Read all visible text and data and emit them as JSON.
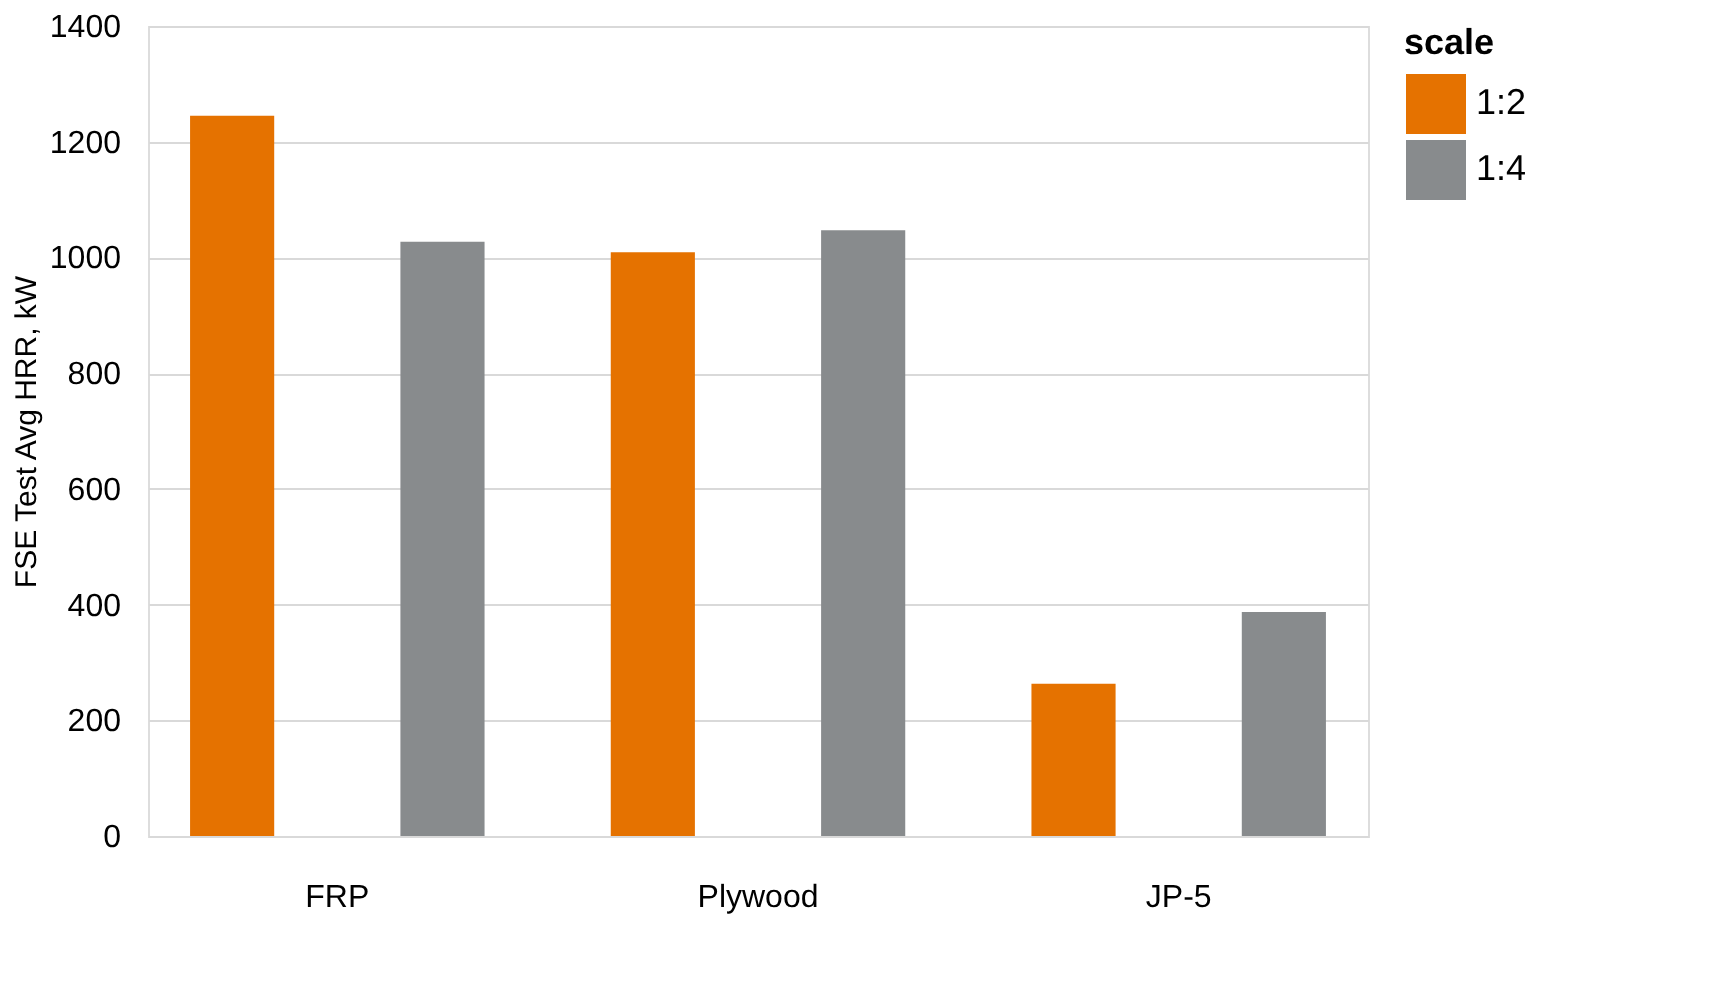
{
  "chart_data": {
    "type": "bar",
    "ylabel": "FSE Test Avg HRR, kW",
    "legend_title": "scale",
    "categories": [
      "FRP",
      "Plywood",
      "JP-5"
    ],
    "series": [
      {
        "name": "1:2",
        "color": "#e57200",
        "values": [
          1245,
          1009,
          263
        ]
      },
      {
        "name": "1:4",
        "color": "#888b8d",
        "values": [
          1027,
          1047,
          387
        ]
      }
    ],
    "ylim": [
      0,
      1400
    ],
    "yticks": [
      0,
      200,
      400,
      600,
      800,
      1000,
      1200,
      1400
    ],
    "grid": "y",
    "legend": "right"
  }
}
